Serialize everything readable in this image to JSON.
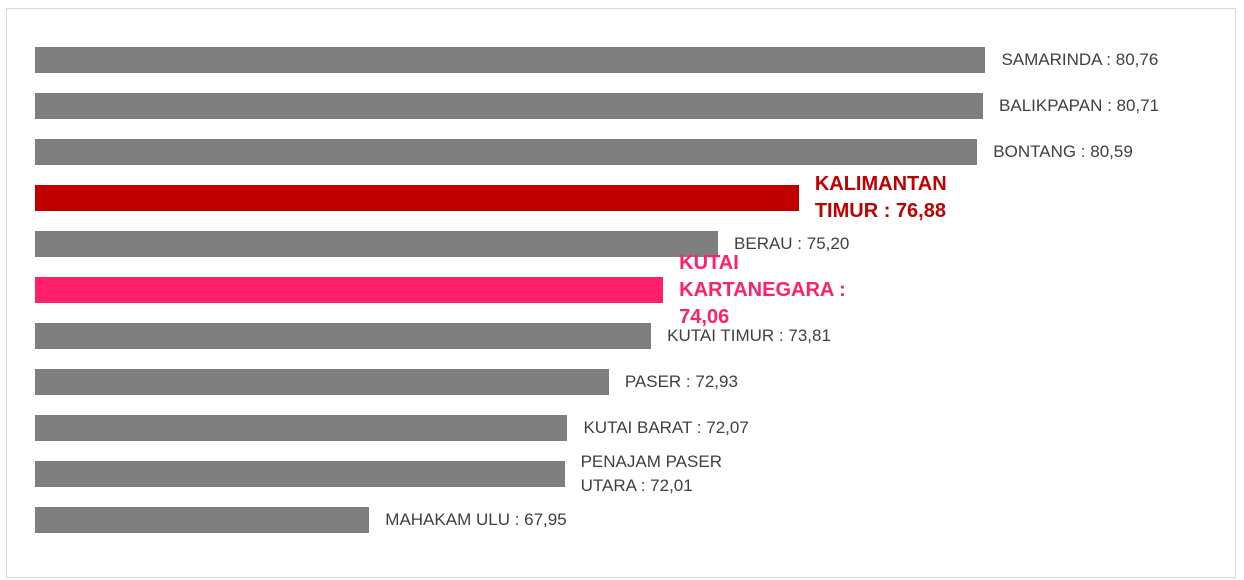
{
  "chart_data": {
    "type": "bar",
    "orientation": "horizontal",
    "values": [
      80.76,
      80.71,
      80.59,
      76.88,
      75.2,
      74.06,
      73.81,
      72.93,
      72.07,
      72.01,
      67.95
    ],
    "value_labels": [
      "SAMARINDA : 80,76",
      "BALIKPAPAN : 80,71",
      "BONTANG : 80,59",
      "KALIMANTAN TIMUR : 76,88",
      "BERAU : 75,20",
      "KUTAI KARTANEGARA : 74,06",
      "KUTAI TIMUR : 73,81",
      "PASER : 72,93",
      "KUTAI BARAT : 72,07",
      "PENAJAM PASER UTARA : 72,01",
      "MAHAKAM ULU : 67,95"
    ],
    "colors": [
      "#7f7f7f",
      "#7f7f7f",
      "#7f7f7f",
      "#c00000",
      "#7f7f7f",
      "#ff1f6b",
      "#7f7f7f",
      "#7f7f7f",
      "#7f7f7f",
      "#7f7f7f",
      "#7f7f7f"
    ],
    "bold_labels": [
      false,
      false,
      false,
      true,
      false,
      true,
      false,
      false,
      false,
      false,
      false
    ],
    "xlim": [
      61,
      81
    ]
  }
}
